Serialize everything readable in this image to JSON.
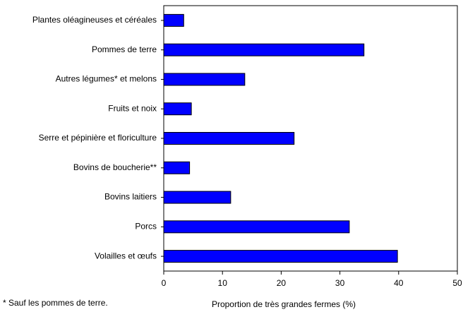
{
  "chart_data": {
    "type": "barh",
    "categories": [
      "Plantes oléagineuses et céréales",
      "Pommes de terre",
      "Autres légumes* et melons",
      "Fruits et noix",
      "Serre et pépinière et floriculture",
      "Bovins de boucherie**",
      "Bovins laitiers",
      "Porcs",
      "Volailles et œufs"
    ],
    "values": [
      3.4,
      34.1,
      13.8,
      4.7,
      22.2,
      4.4,
      11.4,
      31.6,
      39.8
    ],
    "color": "#0000ff",
    "xlim": [
      0,
      50
    ],
    "xticks": [
      0,
      10,
      20,
      30,
      40,
      50
    ],
    "xlabel": "Proportion de très grandes fermes (%)",
    "footnote": "* Sauf les pommes de terre."
  }
}
